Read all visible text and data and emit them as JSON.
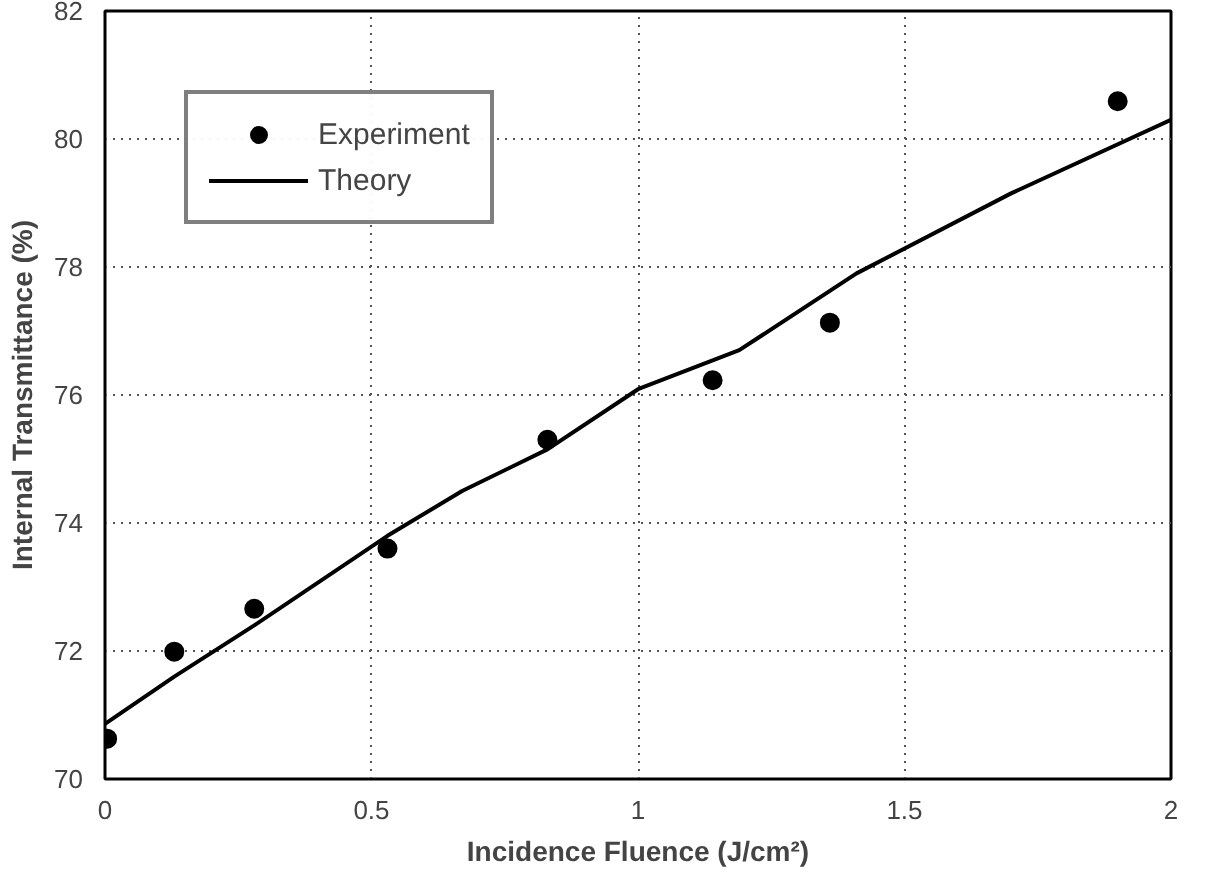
{
  "chart_data": {
    "type": "scatter",
    "xlabel": "Incidence Fluence (J/cm²)",
    "ylabel": "Internal Transmittance (%)",
    "xlim": [
      0,
      2
    ],
    "ylim": [
      70,
      82
    ],
    "xticks": [
      0,
      0.5,
      1,
      1.5,
      2
    ],
    "yticks": [
      70,
      72,
      74,
      76,
      78,
      80,
      82
    ],
    "grid": true,
    "legend": "top left",
    "series": [
      {
        "name": "Experiment",
        "marker": "circle",
        "color": "#000000",
        "x": [
          0.004,
          0.13,
          0.28,
          0.53,
          0.83,
          1.14,
          1.36,
          1.9
        ],
        "values": [
          70.63,
          71.99,
          72.66,
          73.6,
          75.3,
          76.23,
          77.13,
          80.59
        ]
      },
      {
        "name": "Theory",
        "type": "line",
        "line_style": "solid",
        "color": "#000000",
        "x": [
          0,
          0.13,
          0.28,
          0.53,
          0.67,
          0.83,
          1.0,
          1.19,
          1.41,
          1.7,
          2.0
        ],
        "values": [
          70.86,
          71.6,
          72.4,
          73.8,
          74.5,
          75.15,
          76.09,
          76.7,
          77.9,
          79.15,
          80.3
        ]
      }
    ]
  }
}
